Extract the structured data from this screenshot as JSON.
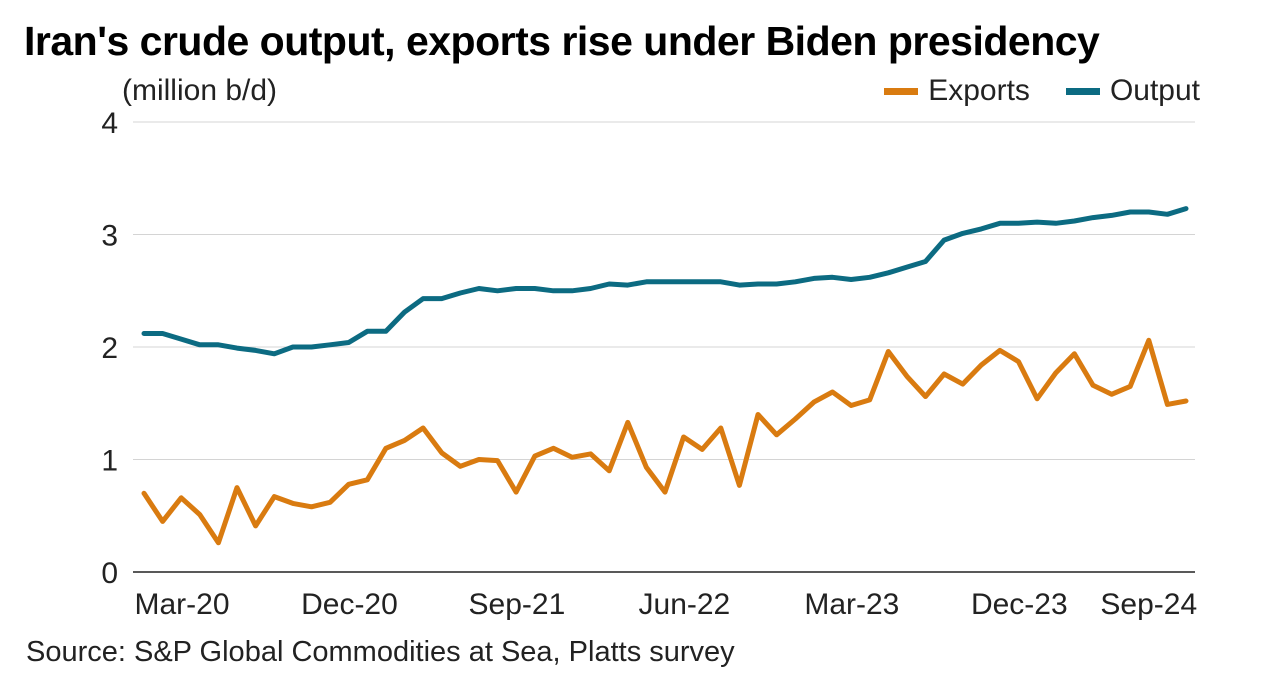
{
  "chart_data": {
    "type": "line",
    "title": "Iran's crude output, exports rise under Biden presidency",
    "unit_label": "(million b/d)",
    "source": "Source: S&P Global Commodities at Sea, Platts survey",
    "ylim": [
      0,
      4
    ],
    "yticks": [
      0,
      1,
      2,
      3,
      4
    ],
    "xtick_labels": [
      "Mar-20",
      "Dec-20",
      "Sep-21",
      "Jun-22",
      "Mar-23",
      "Dec-23",
      "Sep-24"
    ],
    "x_start": "Mar-20",
    "x_end": "Sep-24",
    "grid": true,
    "legend_position": "top-right",
    "series": [
      {
        "name": "Exports",
        "color": "#d97b10",
        "values": [
          0.7,
          0.45,
          0.66,
          0.51,
          0.26,
          0.75,
          0.41,
          0.67,
          0.61,
          0.58,
          0.62,
          0.78,
          0.82,
          1.1,
          1.17,
          1.28,
          1.06,
          0.94,
          1.0,
          0.99,
          0.71,
          1.03,
          1.1,
          1.02,
          1.05,
          0.9,
          1.33,
          0.93,
          0.71,
          1.2,
          1.09,
          1.28,
          0.77,
          1.4,
          1.22,
          1.36,
          1.51,
          1.6,
          1.48,
          1.53,
          1.96,
          1.74,
          1.56,
          1.76,
          1.67,
          1.84,
          1.97,
          1.87,
          1.54,
          1.77,
          1.94,
          1.66,
          1.58,
          1.65,
          2.06,
          1.49,
          1.52
        ]
      },
      {
        "name": "Output",
        "color": "#0c6b82",
        "values": [
          2.12,
          2.12,
          2.07,
          2.02,
          2.02,
          1.99,
          1.97,
          1.94,
          2.0,
          2.0,
          2.02,
          2.04,
          2.14,
          2.14,
          2.31,
          2.43,
          2.43,
          2.48,
          2.52,
          2.5,
          2.52,
          2.52,
          2.5,
          2.5,
          2.52,
          2.56,
          2.55,
          2.58,
          2.58,
          2.58,
          2.58,
          2.58,
          2.55,
          2.56,
          2.56,
          2.58,
          2.61,
          2.62,
          2.6,
          2.62,
          2.66,
          2.71,
          2.76,
          2.95,
          3.01,
          3.05,
          3.1,
          3.1,
          3.11,
          3.1,
          3.12,
          3.15,
          3.17,
          3.2,
          3.2,
          3.18,
          3.23
        ]
      }
    ]
  }
}
